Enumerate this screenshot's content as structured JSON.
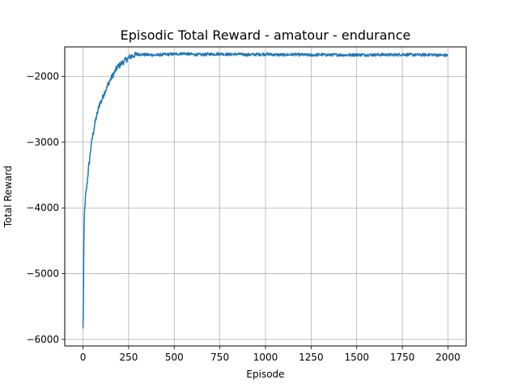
{
  "chart_data": {
    "type": "line",
    "title": "Episodic Total Reward - amatour - endurance",
    "xlabel": "Episode",
    "ylabel": "Total Reward",
    "xlim": [
      -100,
      2100
    ],
    "ylim": [
      -6100,
      -1550
    ],
    "xticks": [
      0,
      250,
      500,
      750,
      1000,
      1250,
      1500,
      1750,
      2000
    ],
    "yticks": [
      -6000,
      -5000,
      -4000,
      -3000,
      -2000
    ],
    "xtick_labels": [
      "0",
      "250",
      "500",
      "750",
      "1000",
      "1250",
      "1500",
      "1750",
      "2000"
    ],
    "ytick_labels": [
      "−6000",
      "−5000",
      "−4000",
      "−3000",
      "−2000"
    ],
    "grid": true,
    "line_color": "#1f77b4",
    "series": [
      {
        "x": [
          0,
          2,
          4,
          6,
          8,
          10,
          15,
          20,
          25,
          30,
          35,
          40,
          50,
          60,
          70,
          80,
          90,
          100,
          110,
          120,
          130,
          140,
          150,
          160,
          170,
          180,
          190,
          200,
          220,
          240,
          260,
          280,
          300,
          350,
          400,
          450,
          500,
          550,
          600,
          650,
          700,
          750,
          800,
          850,
          900,
          950,
          1000,
          1050,
          1100,
          1150,
          1200,
          1250,
          1300,
          1350,
          1400,
          1450,
          1500,
          1550,
          1600,
          1650,
          1700,
          1750,
          1800,
          1850,
          1900,
          1950,
          2000
        ],
        "values": [
          -5850,
          -5500,
          -4750,
          -4350,
          -4100,
          -4000,
          -3800,
          -3700,
          -3550,
          -3400,
          -3300,
          -3150,
          -2950,
          -2800,
          -2650,
          -2550,
          -2420,
          -2380,
          -2300,
          -2230,
          -2180,
          -2100,
          -2050,
          -2000,
          -1950,
          -1900,
          -1850,
          -1830,
          -1780,
          -1740,
          -1700,
          -1680,
          -1660,
          -1670,
          -1675,
          -1665,
          -1660,
          -1650,
          -1665,
          -1670,
          -1660,
          -1655,
          -1665,
          -1660,
          -1670,
          -1665,
          -1660,
          -1668,
          -1672,
          -1665,
          -1670,
          -1675,
          -1668,
          -1672,
          -1670,
          -1675,
          -1668,
          -1672,
          -1670,
          -1668,
          -1672,
          -1665,
          -1670,
          -1672,
          -1668,
          -1675,
          -1680
        ]
      }
    ]
  }
}
